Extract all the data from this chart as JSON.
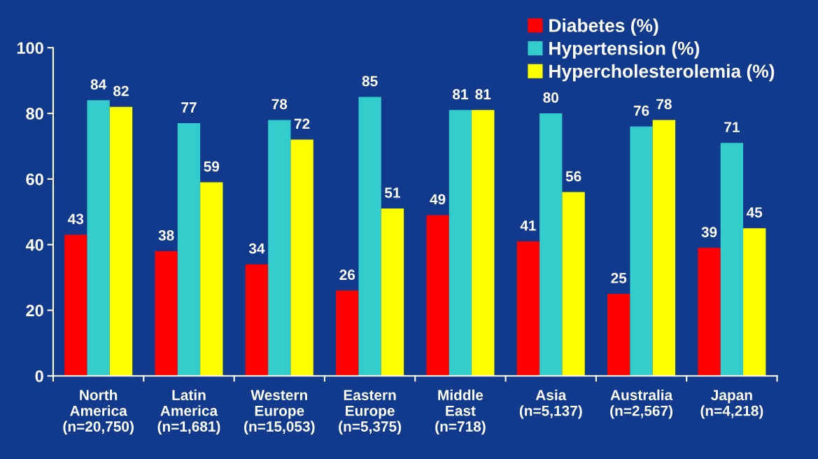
{
  "chart_data": {
    "type": "bar",
    "categories": [
      "North\nAmerica\n(n=20,750)",
      "Latin\nAmerica\n(n=1,681)",
      "Western\nEurope\n(n=15,053)",
      "Eastern\nEurope\n(n=5,375)",
      "Middle\nEast\n(n=718)",
      "Asia\n(n=5,137)",
      "Australia\n(n=2,567)",
      "Japan\n(n=4,218)"
    ],
    "series": [
      {
        "name": "Diabetes (%)",
        "color": "#ff0000",
        "values": [
          43,
          38,
          34,
          26,
          49,
          41,
          25,
          39
        ]
      },
      {
        "name": "Hypertension (%)",
        "color": "#33cccc",
        "values": [
          84,
          77,
          78,
          85,
          81,
          80,
          76,
          71
        ]
      },
      {
        "name": "Hypercholesterolemia (%)",
        "color": "#ffff00",
        "values": [
          82,
          59,
          72,
          51,
          81,
          56,
          78,
          45
        ]
      }
    ],
    "ylim": [
      0,
      100
    ],
    "yticks": [
      0,
      20,
      40,
      60,
      80,
      100
    ],
    "data_labels": true,
    "legend": "top right",
    "grid": false
  }
}
